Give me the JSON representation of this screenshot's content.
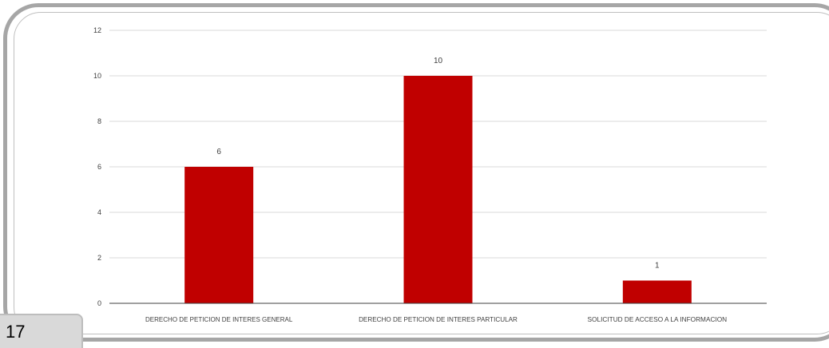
{
  "page": {
    "number": "17"
  },
  "colors": {
    "bar": "#c00000",
    "gridline": "#d9d9d9",
    "axis": "#404040",
    "frame": "#a6a6a6",
    "page_tab": "#d9d9d9"
  },
  "chart_data": {
    "type": "bar",
    "title": "",
    "xlabel": "",
    "ylabel": "",
    "categories": [
      "DERECHO DE PETICION DE INTERES GENERAL",
      "DERECHO DE PETICION DE INTERES PARTICULAR",
      "SOLICITUD DE ACCESO A LA INFORMACION"
    ],
    "values": [
      6,
      10,
      1
    ],
    "data_labels": [
      "6",
      "10",
      "1"
    ],
    "ylim": [
      0,
      12
    ],
    "yticks": [
      0,
      2,
      4,
      6,
      8,
      10,
      12
    ],
    "grid": true,
    "legend": "none"
  }
}
